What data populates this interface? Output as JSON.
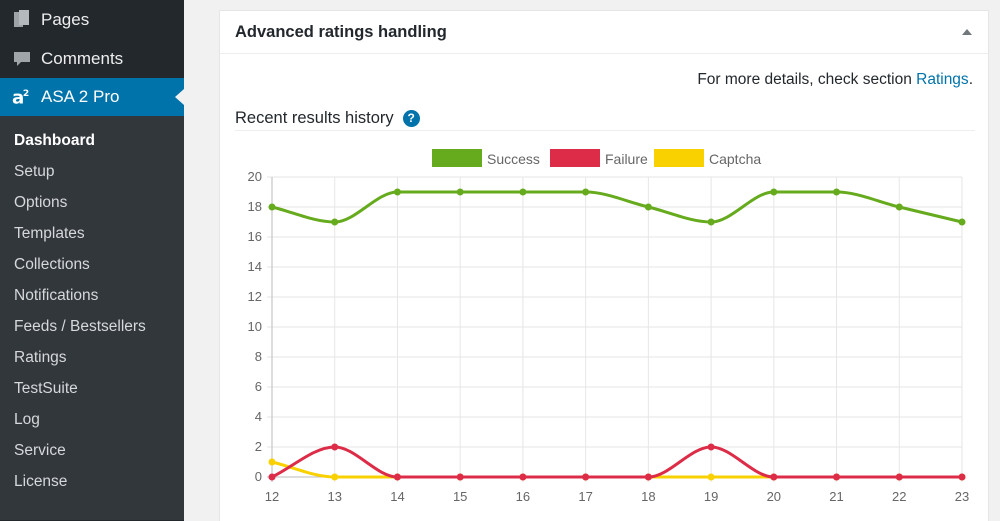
{
  "sidebar": {
    "top_items": [
      {
        "label": "Pages",
        "icon": "pages-icon"
      },
      {
        "label": "Comments",
        "icon": "comments-icon"
      },
      {
        "label": "ASA 2 Pro",
        "icon": "asa2-logo-icon",
        "current": true
      }
    ],
    "submenu": [
      "Dashboard",
      "Setup",
      "Options",
      "Templates",
      "Collections",
      "Notifications",
      "Feeds / Bestsellers",
      "Ratings",
      "TestSuite",
      "Log",
      "Service",
      "License"
    ],
    "active_submenu": "Dashboard"
  },
  "panel": {
    "title": "Advanced ratings handling",
    "details_prefix": "For more details, check section ",
    "details_link": "Ratings",
    "details_suffix": ".",
    "history_title": "Recent results history",
    "help_glyph": "?"
  },
  "colors": {
    "accent": "#0073aa",
    "sidebar_bg": "#23282d",
    "success": "#66ab1e",
    "failure": "#dc2c47",
    "captcha": "#fad100"
  },
  "chart_data": {
    "type": "line",
    "categories": [
      "12",
      "13",
      "14",
      "15",
      "16",
      "17",
      "18",
      "19",
      "20",
      "21",
      "22",
      "23"
    ],
    "series": [
      {
        "name": "Success",
        "color": "#66ab1e",
        "values": [
          18,
          17,
          19,
          19,
          19,
          19,
          18,
          17,
          19,
          19,
          18,
          17
        ]
      },
      {
        "name": "Failure",
        "color": "#dc2c47",
        "values": [
          0,
          2,
          0,
          0,
          0,
          0,
          0,
          2,
          0,
          0,
          0,
          0
        ]
      },
      {
        "name": "Captcha",
        "color": "#fad100",
        "values": [
          1,
          0,
          0,
          0,
          0,
          0,
          0,
          0,
          0,
          0,
          0,
          0
        ]
      }
    ],
    "yticks": [
      0,
      2,
      4,
      6,
      8,
      10,
      12,
      14,
      16,
      18,
      20
    ],
    "ylim": [
      0,
      20
    ],
    "grid": true,
    "legend": "top-center"
  }
}
